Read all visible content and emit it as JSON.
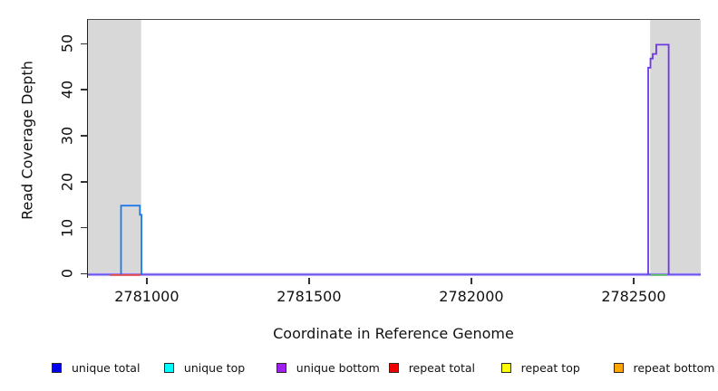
{
  "figure": {
    "y_axis_label": "Read Coverage Depth",
    "x_axis_label": "Coordinate in Reference Genome"
  },
  "chart_data": {
    "type": "line",
    "subtype": "step-coverage-pileup",
    "title": "",
    "xlabel": "Coordinate in Reference Genome",
    "ylabel": "Read Coverage Depth",
    "xlim": [
      2780816,
      2782704
    ],
    "ylim": [
      -0.92,
      55.4
    ],
    "x_ticks": [
      2781000,
      2781500,
      2782000,
      2782500
    ],
    "y_ticks": [
      0,
      10,
      20,
      30,
      40,
      50
    ],
    "grid": false,
    "legend_position": "bottom",
    "shaded_regions": [
      {
        "name": "left-repeat-region",
        "x0": 2780816,
        "x1": 2780980,
        "y0": 0,
        "y1": 55.4,
        "color": "#d8d8d8"
      },
      {
        "name": "right-repeat-region",
        "x0": 2782548,
        "x1": 2782704,
        "y0": 0,
        "y1": 55.4,
        "color": "#d8d8d8"
      }
    ],
    "series": [
      {
        "name": "baseline-halo",
        "color": "#cdc3f9",
        "width": 3.6,
        "points": [
          [
            2780816,
            0
          ],
          [
            2782704,
            0
          ]
        ]
      },
      {
        "name": "baseline-zero-coverage",
        "color": "#6b54ec",
        "width": 1.8,
        "points": [
          [
            2780816,
            0
          ],
          [
            2782704,
            0
          ]
        ]
      },
      {
        "name": "repeat-total-zero-segment",
        "color": "#e84a44",
        "width": 1.8,
        "points": [
          [
            2780883,
            -0.1
          ],
          [
            2780978,
            -0.1
          ]
        ]
      },
      {
        "name": "unique-top-zero-segment",
        "color": "#5cc05c",
        "width": 1.8,
        "points": [
          [
            2782550,
            -0.1
          ],
          [
            2782601,
            -0.1
          ]
        ]
      },
      {
        "name": "unique total",
        "color": "#1f7ae8",
        "width": 1.8,
        "points": [
          [
            2780918,
            0
          ],
          [
            2780918,
            15
          ],
          [
            2780976,
            15
          ],
          [
            2780976,
            13
          ],
          [
            2780981,
            13
          ],
          [
            2780981,
            0
          ]
        ]
      },
      {
        "name": "unique bottom",
        "color": "#6c36ea",
        "width": 1.8,
        "points": [
          [
            2782542,
            0
          ],
          [
            2782542,
            45
          ],
          [
            2782549,
            45
          ],
          [
            2782549,
            47
          ],
          [
            2782556,
            47
          ],
          [
            2782556,
            48
          ],
          [
            2782567,
            48
          ],
          [
            2782567,
            50
          ],
          [
            2782605,
            50
          ],
          [
            2782605,
            0
          ]
        ]
      }
    ],
    "legend": [
      {
        "label": "unique total",
        "color": "#0000ee"
      },
      {
        "label": "unique top",
        "color": "#00ffff"
      },
      {
        "label": "unique bottom",
        "color": "#a020f0"
      },
      {
        "label": "repeat total",
        "color": "#ee0000"
      },
      {
        "label": "repeat top",
        "color": "#ffff00"
      },
      {
        "label": "repeat bottom",
        "color": "#ffa500"
      }
    ]
  },
  "layout_note": "coverage depth plot with shaded repeat regions"
}
